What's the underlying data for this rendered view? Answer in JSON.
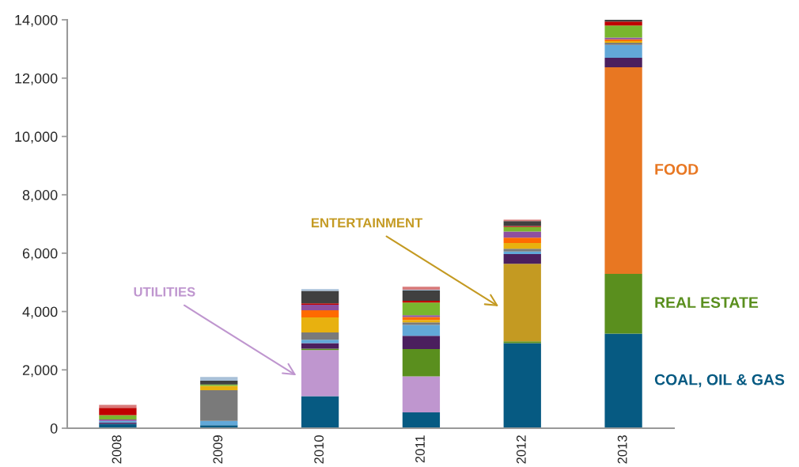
{
  "chart_data": {
    "type": "bar",
    "stacked": true,
    "categories": [
      "2008",
      "2009",
      "2010",
      "2011",
      "2012",
      "2013"
    ],
    "ylim": [
      0,
      14000
    ],
    "yticks": [
      0,
      {
        "value": 2000,
        "label": "2,000"
      },
      {
        "value": 4000,
        "label": "4,000"
      },
      {
        "value": 6000,
        "label": "6,000"
      },
      {
        "value": 8000,
        "label": "8,000"
      },
      {
        "value": 10000,
        "label": "10,000"
      },
      {
        "value": 12000,
        "label": "12,000"
      },
      {
        "value": 14000,
        "label": "14,000"
      }
    ],
    "grid": false,
    "legend": false,
    "series": [
      {
        "name": "COAL, OIL & GAS",
        "color": "#065a82",
        "values": [
          150,
          100,
          1100,
          540,
          2920,
          3240
        ]
      },
      {
        "name": "UTILITIES",
        "color": "#bf96cf",
        "values": [
          0,
          0,
          1580,
          1240,
          0,
          0
        ]
      },
      {
        "name": "REAL ESTATE",
        "color": "#5a8f1e",
        "values": [
          0,
          0,
          50,
          930,
          60,
          2050
        ]
      },
      {
        "name": "ENTERTAINMENT",
        "color": "#c49a22",
        "values": [
          0,
          0,
          0,
          0,
          2660,
          0
        ]
      },
      {
        "name": "FOOD",
        "color": "#e87722",
        "values": [
          0,
          0,
          0,
          0,
          0,
          7080
        ]
      },
      {
        "color": "#4b1f5e",
        "values": [
          50,
          0,
          190,
          460,
          330,
          330
        ]
      },
      {
        "color": "#62a8d8",
        "values": [
          50,
          150,
          110,
          370,
          90,
          440
        ]
      },
      {
        "color": "#7a7a7a",
        "values": [
          0,
          1050,
          250,
          90,
          90,
          70
        ]
      },
      {
        "color": "#e8b10f",
        "values": [
          0,
          150,
          520,
          80,
          200,
          60
        ]
      },
      {
        "color": "#ff6a00",
        "values": [
          0,
          0,
          240,
          100,
          180,
          60
        ]
      },
      {
        "color": "#8e4fa0",
        "values": [
          50,
          0,
          190,
          60,
          210,
          60
        ]
      },
      {
        "color": "#79b62e",
        "values": [
          150,
          50,
          0,
          440,
          160,
          410
        ]
      },
      {
        "color": "#c00000",
        "values": [
          250,
          0,
          50,
          60,
          30,
          140
        ]
      },
      {
        "color": "#404040",
        "values": [
          0,
          130,
          430,
          350,
          170,
          80
        ]
      },
      {
        "color": "#a8c0d8",
        "values": [
          0,
          130,
          60,
          30,
          0,
          0
        ]
      },
      {
        "color": "#d87a7a",
        "values": [
          100,
          0,
          0,
          100,
          50,
          0
        ]
      }
    ]
  }
}
